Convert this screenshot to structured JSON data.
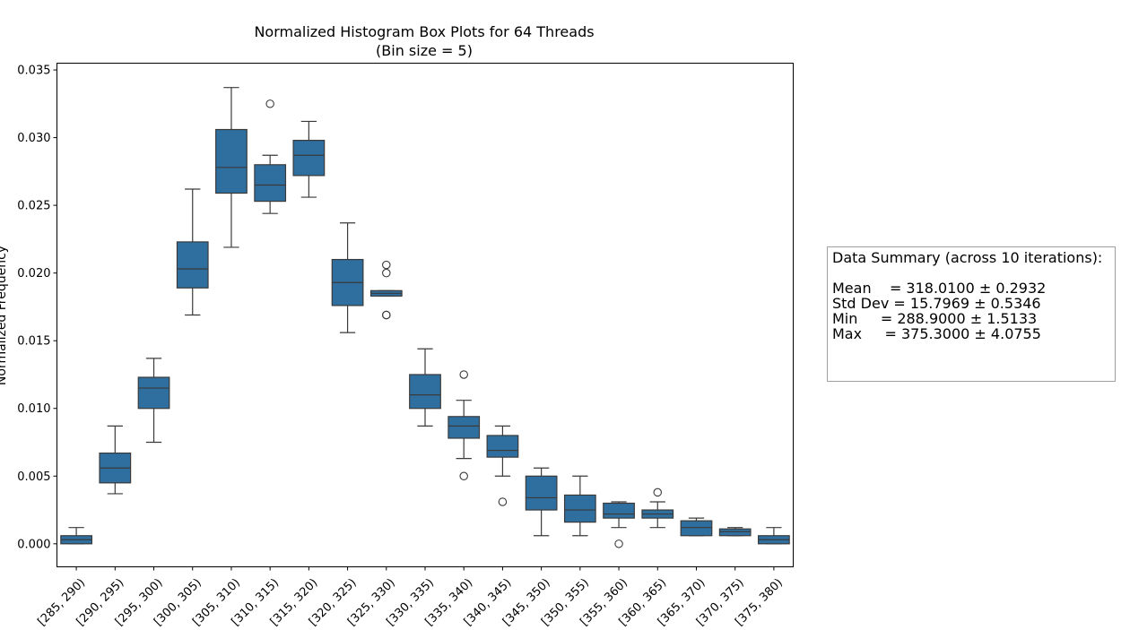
{
  "chart_data": {
    "type": "box",
    "title": "Normalized Histogram Box Plots for 64 Threads",
    "subtitle": "(Bin size = 5)",
    "xlabel": "",
    "ylabel": "Normalized Frequency",
    "ylim": [
      -0.0017,
      0.0355
    ],
    "y_ticks": [
      0.0,
      0.005,
      0.01,
      0.015,
      0.02,
      0.025,
      0.03,
      0.035
    ],
    "y_tick_labels": [
      "0.000",
      "0.005",
      "0.010",
      "0.015",
      "0.020",
      "0.025",
      "0.030",
      "0.035"
    ],
    "grid": false,
    "color": "#2f6f9f",
    "categories": [
      "[285, 290)",
      "[290, 295)",
      "[295, 300)",
      "[300, 305)",
      "[305, 310)",
      "[310, 315)",
      "[315, 320)",
      "[320, 325)",
      "[325, 330)",
      "[330, 335)",
      "[335, 340)",
      "[340, 345)",
      "[345, 350)",
      "[350, 355)",
      "[355, 360)",
      "[360, 365)",
      "[365, 370)",
      "[370, 375)",
      "[375, 380)"
    ],
    "boxes": [
      {
        "whisker_low": 0.0,
        "q1": 0.0,
        "median": 0.0003,
        "q3": 0.0006,
        "whisker_high": 0.0012,
        "outliers": []
      },
      {
        "whisker_low": 0.0037,
        "q1": 0.0045,
        "median": 0.0056,
        "q3": 0.0067,
        "whisker_high": 0.0087,
        "outliers": []
      },
      {
        "whisker_low": 0.0075,
        "q1": 0.01,
        "median": 0.0115,
        "q3": 0.0123,
        "whisker_high": 0.0137,
        "outliers": []
      },
      {
        "whisker_low": 0.0169,
        "q1": 0.0189,
        "median": 0.0203,
        "q3": 0.0223,
        "whisker_high": 0.0262,
        "outliers": []
      },
      {
        "whisker_low": 0.0219,
        "q1": 0.0259,
        "median": 0.0278,
        "q3": 0.0306,
        "whisker_high": 0.0337,
        "outliers": []
      },
      {
        "whisker_low": 0.0244,
        "q1": 0.0253,
        "median": 0.0265,
        "q3": 0.028,
        "whisker_high": 0.0287,
        "outliers": [
          0.0325
        ]
      },
      {
        "whisker_low": 0.0256,
        "q1": 0.0272,
        "median": 0.0287,
        "q3": 0.0298,
        "whisker_high": 0.0312,
        "outliers": []
      },
      {
        "whisker_low": 0.0156,
        "q1": 0.0176,
        "median": 0.0193,
        "q3": 0.021,
        "whisker_high": 0.0237,
        "outliers": []
      },
      {
        "whisker_low": 0.0183,
        "q1": 0.0183,
        "median": 0.0185,
        "q3": 0.0187,
        "whisker_high": 0.0187,
        "outliers": [
          0.0206,
          0.02,
          0.0169,
          0.0169
        ]
      },
      {
        "whisker_low": 0.0087,
        "q1": 0.01,
        "median": 0.011,
        "q3": 0.0125,
        "whisker_high": 0.0144,
        "outliers": []
      },
      {
        "whisker_low": 0.0063,
        "q1": 0.0078,
        "median": 0.0087,
        "q3": 0.0094,
        "whisker_high": 0.0106,
        "outliers": [
          0.0125,
          0.005
        ]
      },
      {
        "whisker_low": 0.005,
        "q1": 0.0064,
        "median": 0.0069,
        "q3": 0.008,
        "whisker_high": 0.0087,
        "outliers": [
          0.0031
        ]
      },
      {
        "whisker_low": 0.0006,
        "q1": 0.0025,
        "median": 0.0034,
        "q3": 0.005,
        "whisker_high": 0.0056,
        "outliers": []
      },
      {
        "whisker_low": 0.0006,
        "q1": 0.0016,
        "median": 0.0025,
        "q3": 0.0036,
        "whisker_high": 0.005,
        "outliers": []
      },
      {
        "whisker_low": 0.0012,
        "q1": 0.0019,
        "median": 0.0022,
        "q3": 0.003,
        "whisker_high": 0.0031,
        "outliers": [
          0.0
        ]
      },
      {
        "whisker_low": 0.0012,
        "q1": 0.0019,
        "median": 0.0022,
        "q3": 0.0025,
        "whisker_high": 0.0031,
        "outliers": [
          0.0038
        ]
      },
      {
        "whisker_low": 0.0006,
        "q1": 0.0006,
        "median": 0.0012,
        "q3": 0.0017,
        "whisker_high": 0.0019,
        "outliers": []
      },
      {
        "whisker_low": 0.0006,
        "q1": 0.0006,
        "median": 0.0009,
        "q3": 0.0011,
        "whisker_high": 0.0012,
        "outliers": []
      },
      {
        "whisker_low": 0.0,
        "q1": 0.0,
        "median": 0.0003,
        "q3": 0.0006,
        "whisker_high": 0.0012,
        "outliers": []
      }
    ]
  },
  "summary": {
    "heading": "Data Summary (across 10 iterations):",
    "mean": "Mean    = 318.0100 ± 0.2932",
    "std_dev": "Std Dev = 15.7969 ± 0.5346",
    "min": "Min     = 288.9000 ± 1.5133",
    "max": "Max     = 375.3000 ± 4.0755"
  }
}
